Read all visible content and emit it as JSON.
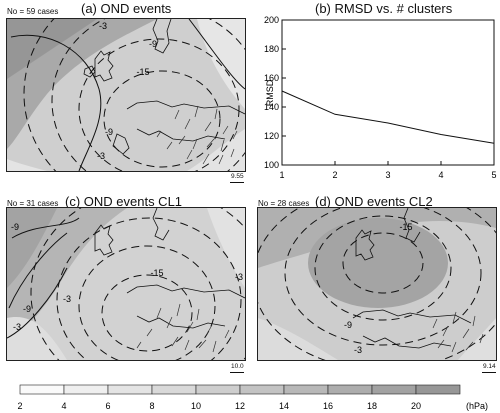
{
  "panels": [
    {
      "id": "a",
      "title": "(a) OND events",
      "ncases": "No = 59 cases",
      "vector_ref": "9.55"
    },
    {
      "id": "c",
      "title": "(c) OND events CL1",
      "ncases": "No = 31 cases",
      "vector_ref": "10.0"
    },
    {
      "id": "d",
      "title": "(d) OND events CL2",
      "ncases": "No = 28 cases",
      "vector_ref": "9.14"
    }
  ],
  "contour_labels": {
    "a": [
      "-3",
      "-9",
      "-15",
      "-9",
      "-3"
    ],
    "c": [
      "-9",
      "-9",
      "-3",
      "-3",
      "-15",
      "-3"
    ],
    "d": [
      "-15",
      "-9",
      "-3"
    ]
  },
  "chart_data": [
    {
      "type": "line",
      "title": "(b) RMSD vs. # clusters",
      "xlabel": "",
      "ylabel": "RMSD",
      "x": [
        1,
        2,
        3,
        4,
        5
      ],
      "series": [
        {
          "values": [
            151,
            135,
            129,
            121,
            115
          ]
        }
      ],
      "xlim": [
        1,
        5
      ],
      "ylim": [
        100,
        200
      ],
      "xticks": [
        "1",
        "2",
        "3",
        "4",
        "5"
      ],
      "yticks": [
        "100",
        "120",
        "140",
        "160",
        "180",
        "200"
      ],
      "grid": false
    },
    {
      "type": "heatmap",
      "title": "",
      "colorbar_unit": "(hPa)",
      "colorbar_range": [
        2,
        22
      ],
      "colorbar_ticks": [
        "2",
        "4",
        "6",
        "8",
        "10",
        "12",
        "14",
        "16",
        "18",
        "20"
      ],
      "colorbar_colors": [
        "#fafafa",
        "#efefef",
        "#e4e4e4",
        "#d9d9d9",
        "#cecece",
        "#c3c3c3",
        "#b8b8b8",
        "#adadad",
        "#a2a2a2",
        "#979797"
      ]
    }
  ]
}
